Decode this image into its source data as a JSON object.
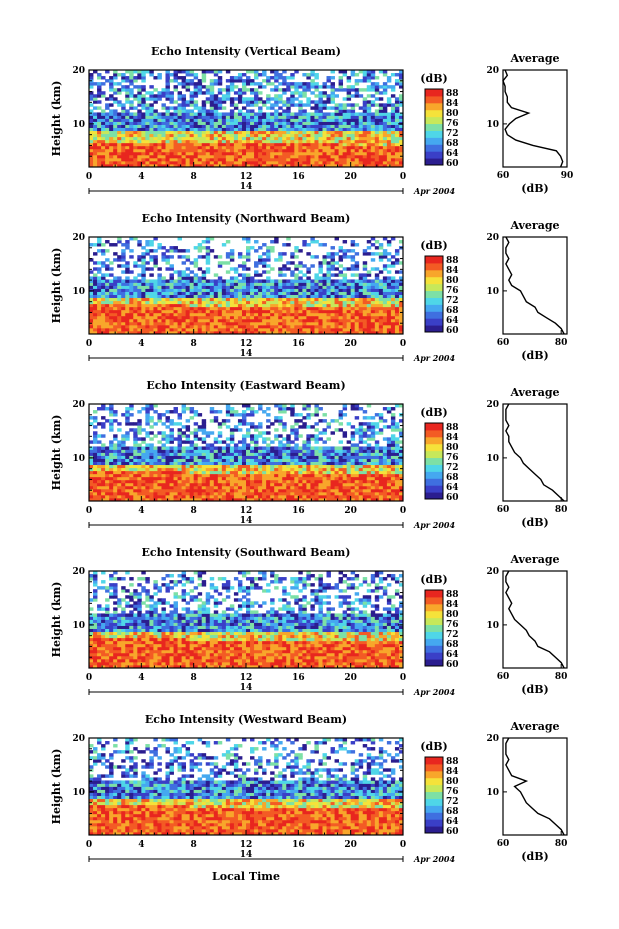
{
  "footer_xlabel": "Local Time",
  "colorbar": {
    "unit": "(dB)",
    "ticks": [
      "88",
      "84",
      "80",
      "76",
      "72",
      "68",
      "64",
      "60"
    ],
    "colors": [
      "#2b1d8f",
      "#3a3fc7",
      "#3f6fe0",
      "#45a8f0",
      "#4fd6e8",
      "#7de0a6",
      "#c7e85a",
      "#f5e23a",
      "#f8a62b",
      "#f35b24",
      "#e8261f"
    ]
  },
  "chart_data": [
    {
      "type": "heatmap",
      "title": "Echo Intensity (Vertical Beam)",
      "ylabel": "Height (km)",
      "x_ticks": [
        "0",
        "4",
        "8",
        "12",
        "16",
        "20",
        "0"
      ],
      "y_ticks": [
        "20",
        "10"
      ],
      "date_mark": "14",
      "date_label": "Apr 2004",
      "xlim": [
        0,
        24
      ],
      "ylim": [
        2,
        20
      ],
      "profile": {
        "title": "Average",
        "xlabel": "(dB)",
        "x_ticks": [
          "60",
          "90"
        ],
        "y_ticks": [
          "20",
          "10"
        ],
        "xlim": [
          60,
          90
        ],
        "ylim": [
          2,
          20
        ],
        "heights": [
          2,
          3,
          4,
          5,
          6,
          7,
          8,
          9,
          10,
          11,
          12,
          13,
          14,
          15,
          16,
          17,
          18,
          19,
          20
        ],
        "values": [
          87,
          88,
          87,
          85,
          74,
          66,
          62,
          61,
          63,
          66,
          72,
          64,
          62,
          62,
          61,
          61,
          60,
          62,
          61
        ]
      }
    },
    {
      "type": "heatmap",
      "title": "Echo Intensity (Northward Beam)",
      "ylabel": "Height (km)",
      "x_ticks": [
        "0",
        "4",
        "8",
        "12",
        "16",
        "20",
        "0"
      ],
      "y_ticks": [
        "20",
        "10"
      ],
      "date_mark": "14",
      "date_label": "Apr 2004",
      "xlim": [
        0,
        24
      ],
      "ylim": [
        2,
        20
      ],
      "profile": {
        "title": "Average",
        "xlabel": "(dB)",
        "x_ticks": [
          "60",
          "80"
        ],
        "y_ticks": [
          "20",
          "10"
        ],
        "xlim": [
          60,
          82
        ],
        "ylim": [
          2,
          20
        ],
        "heights": [
          2,
          3,
          4,
          5,
          6,
          7,
          8,
          9,
          10,
          11,
          12,
          13,
          14,
          15,
          16,
          17,
          18,
          19,
          20
        ],
        "values": [
          81,
          80,
          78,
          75,
          72,
          71,
          68,
          67,
          66,
          63,
          62,
          63,
          62,
          61,
          62,
          61,
          61,
          62,
          61
        ]
      }
    },
    {
      "type": "heatmap",
      "title": "Echo Intensity (Eastward Beam)",
      "ylabel": "Height (km)",
      "x_ticks": [
        "0",
        "4",
        "8",
        "12",
        "16",
        "20",
        "0"
      ],
      "y_ticks": [
        "20",
        "10"
      ],
      "date_mark": "14",
      "date_label": "Apr 2004",
      "xlim": [
        0,
        24
      ],
      "ylim": [
        2,
        20
      ],
      "profile": {
        "title": "Average",
        "xlabel": "(dB)",
        "x_ticks": [
          "60",
          "80"
        ],
        "y_ticks": [
          "20",
          "10"
        ],
        "xlim": [
          60,
          82
        ],
        "ylim": [
          2,
          20
        ],
        "heights": [
          2,
          3,
          4,
          5,
          6,
          7,
          8,
          9,
          10,
          11,
          12,
          13,
          14,
          15,
          16,
          17,
          18,
          19,
          20
        ],
        "values": [
          81,
          79,
          77,
          74,
          73,
          71,
          69,
          67,
          66,
          64,
          63,
          62,
          62,
          61,
          62,
          61,
          61,
          61,
          62
        ]
      }
    },
    {
      "type": "heatmap",
      "title": "Echo Intensity (Southward Beam)",
      "ylabel": "Height (km)",
      "x_ticks": [
        "0",
        "4",
        "8",
        "12",
        "16",
        "20",
        "0"
      ],
      "y_ticks": [
        "20",
        "10"
      ],
      "date_mark": "14",
      "date_label": "Apr 2004",
      "xlim": [
        0,
        24
      ],
      "ylim": [
        2,
        20
      ],
      "profile": {
        "title": "Average",
        "xlabel": "(dB)",
        "x_ticks": [
          "60",
          "80"
        ],
        "y_ticks": [
          "20",
          "10"
        ],
        "xlim": [
          60,
          82
        ],
        "ylim": [
          2,
          20
        ],
        "heights": [
          2,
          3,
          4,
          5,
          6,
          7,
          8,
          9,
          10,
          11,
          12,
          13,
          14,
          15,
          16,
          17,
          18,
          19,
          20
        ],
        "values": [
          81,
          80,
          78,
          76,
          72,
          71,
          69,
          68,
          66,
          64,
          63,
          62,
          63,
          62,
          61,
          62,
          61,
          61,
          62
        ]
      }
    },
    {
      "type": "heatmap",
      "title": "Echo Intensity (Westward Beam)",
      "ylabel": "Height (km)",
      "x_ticks": [
        "0",
        "4",
        "8",
        "12",
        "16",
        "20",
        "0"
      ],
      "y_ticks": [
        "20",
        "10"
      ],
      "date_mark": "14",
      "date_label": "Apr 2004",
      "xlim": [
        0,
        24
      ],
      "ylim": [
        2,
        20
      ],
      "profile": {
        "title": "Average",
        "xlabel": "(dB)",
        "x_ticks": [
          "60",
          "80"
        ],
        "y_ticks": [
          "20",
          "10"
        ],
        "xlim": [
          60,
          82
        ],
        "ylim": [
          2,
          20
        ],
        "heights": [
          2,
          3,
          4,
          5,
          6,
          7,
          8,
          9,
          10,
          11,
          12,
          13,
          14,
          15,
          16,
          17,
          18,
          19,
          20
        ],
        "values": [
          81,
          80,
          78,
          76,
          72,
          70,
          68,
          67,
          66,
          64,
          68,
          63,
          62,
          61,
          62,
          61,
          61,
          61,
          62
        ]
      }
    }
  ]
}
